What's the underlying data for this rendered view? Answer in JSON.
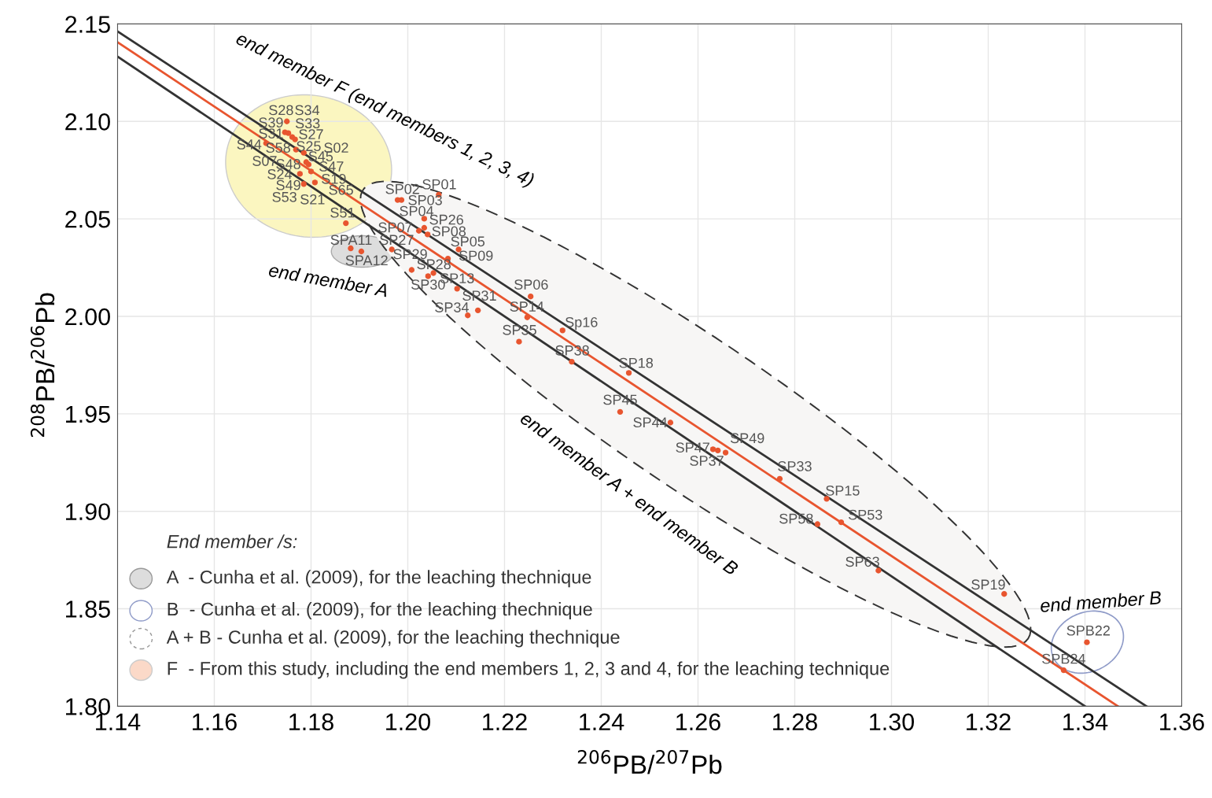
{
  "chart_data": {
    "type": "scatter",
    "xlabel": "$^{206}$PB/$^{207}$Pb",
    "ylabel": "$^{208}$PB/$^{206}$Pb",
    "xlim": [
      1.14,
      1.36
    ],
    "ylim": [
      1.8,
      2.15
    ],
    "xticks": [
      1.14,
      1.16,
      1.18,
      {
        "value": 1.2,
        "label": "1.20"
      },
      1.22,
      1.24,
      1.26,
      1.28,
      {
        "value": 1.3,
        "label": "1.30"
      },
      1.32,
      1.34,
      1.36
    ],
    "yticks": [
      {
        "value": 1.8,
        "label": "1.80"
      },
      1.85,
      {
        "value": 1.9,
        "label": "1.90"
      },
      1.95,
      {
        "value": 2.0,
        "label": "2.00"
      },
      2.05,
      {
        "value": 2.1,
        "label": "2.10"
      },
      2.15
    ],
    "grid": true,
    "series": [
      {
        "type": "line",
        "color": "#333333",
        "x": [
          1.14,
          1.3527
        ],
        "values": [
          2.1462,
          1.8
        ]
      },
      {
        "type": "line",
        "color": "#333333",
        "x": [
          1.14,
          1.34
        ],
        "values": [
          2.1333,
          1.8
        ]
      },
      {
        "type": "line",
        "color": "#e8552f",
        "x": [
          1.14,
          1.3468
        ],
        "values": [
          2.1406,
          1.8
        ]
      },
      {
        "color": "#e8552f",
        "marker": "circle",
        "x": [
          1.175,
          1.1746,
          1.1753,
          1.1761,
          1.1767,
          1.1707,
          1.1769,
          1.1785,
          1.179,
          1.1795,
          1.18,
          1.1777,
          1.1808,
          1.1785,
          1.1872,
          1.1979,
          1.1987,
          1.2064,
          1.2034,
          1.2034,
          1.2023,
          1.2041,
          1.2105,
          1.2083,
          1.1882,
          1.1904,
          1.1967,
          1.2008,
          1.2053,
          1.2042,
          1.2102,
          1.2145,
          1.2124,
          1.2254,
          1.2247,
          1.232,
          1.223,
          1.2339,
          1.2457,
          1.2439,
          1.2543,
          1.2631,
          1.2641,
          1.2657,
          1.2769,
          1.2866,
          1.2847,
          1.2896,
          1.2973,
          1.3233,
          1.3404,
          1.3356
        ],
        "values": [
          2.1,
          2.0944,
          2.094,
          2.092,
          2.0908,
          2.0888,
          2.0855,
          2.0839,
          2.0791,
          2.0779,
          2.0743,
          2.0731,
          2.0687,
          2.0679,
          2.0478,
          2.0597,
          2.0597,
          2.0624,
          2.0501,
          2.0454,
          2.0439,
          2.042,
          2.0343,
          2.0296,
          2.0349,
          2.0333,
          2.0343,
          2.0238,
          2.0222,
          2.0206,
          2.0142,
          2.0031,
          2.0005,
          2.0102,
          1.9995,
          1.9928,
          1.987,
          1.9767,
          1.971,
          1.951,
          1.9455,
          1.9318,
          1.9312,
          1.9301,
          1.9167,
          1.9064,
          1.8934,
          1.8944,
          1.8696,
          1.8576,
          1.8328,
          1.8185
        ]
      }
    ],
    "annotations": [
      "end member F (end members 1, 2, 3, 4)",
      "end member A",
      "end member A + end member B",
      "end member B",
      "End member /s:",
      "A  - Cunha et al. (2009), for the leaching thechnique",
      "B  - Cunha et al. (2009), for the leaching thechnique",
      "A + B - Cunha et al. (2009), for the leaching thechnique",
      "F  - From this study, including the end members 1, 2, 3 and 4, for the leaching technique",
      "S28",
      "S34",
      "S39",
      "S33",
      "S31",
      "S27",
      "S44",
      "S58",
      "S25",
      "S02",
      "S45",
      "S07",
      "S48",
      "S47",
      "S24",
      "S19",
      "S49",
      "S65",
      "S53",
      "S21",
      "S51",
      "SP02",
      "SP01",
      "SP03",
      "SP04",
      "SP26",
      "SP07",
      "SP08",
      "SP05",
      "SP09",
      "SPA11",
      "SPA12",
      "SP27",
      "SP29",
      "SP28",
      "SP30",
      "SP13",
      "SP31",
      "SP34",
      "SP06",
      "SP14",
      "Sp16",
      "SP35",
      "SP38",
      "SP18",
      "SP45",
      "SP44",
      "SP47",
      "SP49",
      "SP37",
      "SP33",
      "SP15",
      "SP58",
      "SP53",
      "SP63",
      "SP19",
      "SPB22",
      "SPB24"
    ]
  }
}
